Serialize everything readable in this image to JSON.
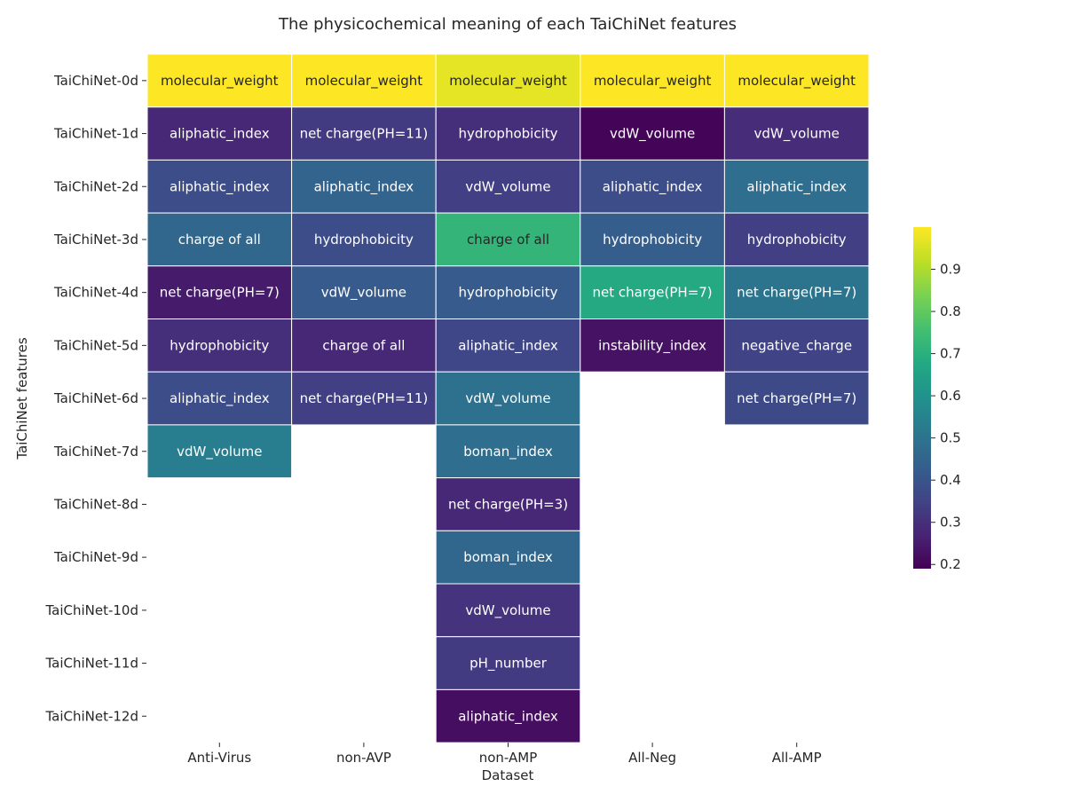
{
  "chart_data": {
    "type": "heatmap",
    "title": "The physicochemical meaning of each TaiChiNet features",
    "xlabel": "Dataset",
    "ylabel": "TaiChiNet features",
    "columns": [
      "Anti-Virus",
      "non-AVP",
      "non-AMP",
      "All-Neg",
      "All-AMP"
    ],
    "rows": [
      "TaiChiNet-0d",
      "TaiChiNet-1d",
      "TaiChiNet-2d",
      "TaiChiNet-3d",
      "TaiChiNet-4d",
      "TaiChiNet-5d",
      "TaiChiNet-6d",
      "TaiChiNet-7d",
      "TaiChiNet-8d",
      "TaiChiNet-9d",
      "TaiChiNet-10d",
      "TaiChiNet-11d",
      "TaiChiNet-12d"
    ],
    "values": [
      [
        1.0,
        1.0,
        0.97,
        1.0,
        1.0
      ],
      [
        0.28,
        0.33,
        0.3,
        0.2,
        0.29
      ],
      [
        0.38,
        0.45,
        0.34,
        0.38,
        0.48
      ],
      [
        0.46,
        0.38,
        0.72,
        0.43,
        0.34
      ],
      [
        0.25,
        0.42,
        0.42,
        0.68,
        0.5
      ],
      [
        0.3,
        0.28,
        0.36,
        0.23,
        0.35
      ],
      [
        0.38,
        0.34,
        0.49,
        null,
        0.37
      ],
      [
        0.53,
        null,
        0.48,
        null,
        null
      ],
      [
        null,
        null,
        0.28,
        null,
        null
      ],
      [
        null,
        null,
        0.46,
        null,
        null
      ],
      [
        null,
        null,
        0.31,
        null,
        null
      ],
      [
        null,
        null,
        0.33,
        null,
        null
      ],
      [
        null,
        null,
        0.22,
        null,
        null
      ]
    ],
    "labels": [
      [
        "molecular_weight",
        "molecular_weight",
        "molecular_weight",
        "molecular_weight",
        "molecular_weight"
      ],
      [
        "aliphatic_index",
        "net charge(PH=11)",
        "hydrophobicity",
        "vdW_volume",
        "vdW_volume"
      ],
      [
        "aliphatic_index",
        "aliphatic_index",
        "vdW_volume",
        "aliphatic_index",
        "aliphatic_index"
      ],
      [
        "charge of all",
        "hydrophobicity",
        "charge of all",
        "hydrophobicity",
        "hydrophobicity"
      ],
      [
        "net charge(PH=7)",
        "vdW_volume",
        "hydrophobicity",
        "net charge(PH=7)",
        "net charge(PH=7)"
      ],
      [
        "hydrophobicity",
        "charge of all",
        "aliphatic_index",
        "instability_index",
        "negative_charge"
      ],
      [
        "aliphatic_index",
        "net charge(PH=11)",
        "vdW_volume",
        "",
        "net charge(PH=7)"
      ],
      [
        "vdW_volume",
        "",
        "boman_index",
        "",
        ""
      ],
      [
        "",
        "",
        "net charge(PH=3)",
        "",
        ""
      ],
      [
        "",
        "",
        "boman_index",
        "",
        ""
      ],
      [
        "",
        "",
        "vdW_volume",
        "",
        ""
      ],
      [
        "",
        "",
        "pH_number",
        "",
        ""
      ],
      [
        "",
        "",
        "aliphatic_index",
        "",
        ""
      ]
    ],
    "colorbar": {
      "colormap": "viridis",
      "vmin": 0.19,
      "vmax": 1.0,
      "ticks": [
        "0.2",
        "0.3",
        "0.4",
        "0.5",
        "0.6",
        "0.7",
        "0.8",
        "0.9"
      ]
    },
    "grid": false,
    "legend": "colorbar-right"
  }
}
